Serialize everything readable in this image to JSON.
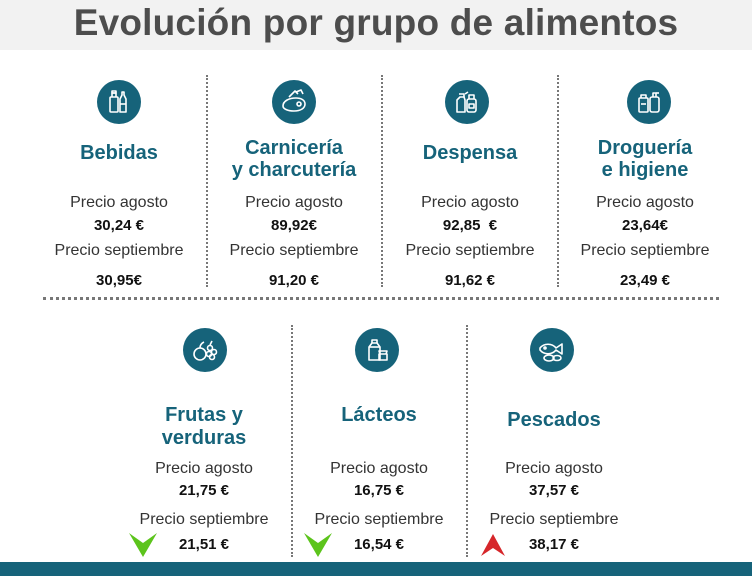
{
  "title": "Evolución por grupo de alimentos",
  "label_agosto": "Precio agosto",
  "label_septiembre": "Precio septiembre",
  "colors": {
    "accent": "#16637a",
    "down": "#5cc41c",
    "up": "#d6262a"
  },
  "categories": [
    {
      "name_line1": "Bebidas",
      "name_line2": "",
      "icon": "beverage-bottles-icon",
      "agosto": "30,24 €",
      "septiembre": "30,95€",
      "trend": ""
    },
    {
      "name_line1": "Carnicería",
      "name_line2": "y charcutería",
      "icon": "meat-icon",
      "agosto": "89,92€",
      "septiembre": "91,20 €",
      "trend": ""
    },
    {
      "name_line1": "Despensa",
      "name_line2": "",
      "icon": "pantry-products-icon",
      "agosto": "92,85  €",
      "septiembre": "91,62 €",
      "trend": ""
    },
    {
      "name_line1": "Droguería",
      "name_line2": "e higiene",
      "icon": "cleaning-products-icon",
      "agosto": "23,64€",
      "septiembre": "23,49 €",
      "trend": ""
    },
    {
      "name_line1": "Frutas y",
      "name_line2": "verduras",
      "icon": "fruits-vegetables-icon",
      "agosto": "21,75 €",
      "septiembre": "21,51 €",
      "trend": "down"
    },
    {
      "name_line1": "Lácteos",
      "name_line2": "",
      "icon": "dairy-products-icon",
      "agosto": "16,75 €",
      "septiembre": "16,54 €",
      "trend": "down"
    },
    {
      "name_line1": "Pescados",
      "name_line2": "",
      "icon": "fish-icon",
      "agosto": "37,57 €",
      "septiembre": "38,17 €",
      "trend": "up"
    }
  ]
}
